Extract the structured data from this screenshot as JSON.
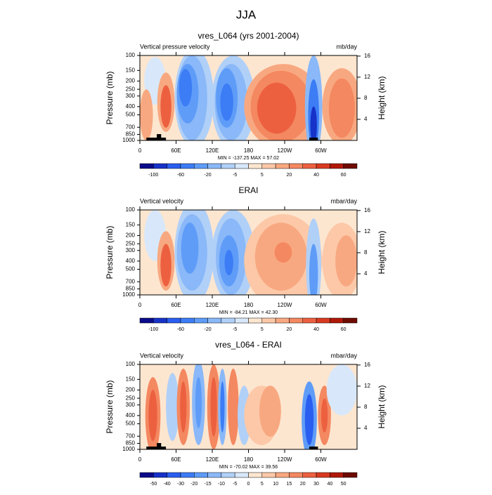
{
  "title": "JJA",
  "chart_data": [
    {
      "type": "contour",
      "title": "vres_L064 (yrs 2001-2004)",
      "left_label": "Vertical pressure velocity",
      "right_label": "mb/day",
      "y_label": "Pressure (mb)",
      "y2_label": "Height (km)",
      "log_y": true,
      "ylim": [
        1000,
        100
      ],
      "yticks": [
        100,
        150,
        200,
        250,
        300,
        400,
        500,
        700,
        850,
        1000
      ],
      "y2ticks": [
        4,
        8,
        12,
        16
      ],
      "xlim": [
        0,
        360
      ],
      "xticks": [
        0,
        {
          "value": 60,
          "label": "60E"
        },
        {
          "value": 120,
          "label": "120E"
        },
        180,
        {
          "value": 240,
          "label": "120W"
        },
        {
          "value": 300,
          "label": "60W"
        }
      ],
      "stats": "MIN = -137.25  MAX =  57.02",
      "colorbar": {
        "colors": [
          "#0a0a8a",
          "#1632c8",
          "#2a5ef0",
          "#3c7cf5",
          "#5e9cf8",
          "#8ab8f8",
          "#b0d0f8",
          "#d8e8fa",
          "#fde6d0",
          "#fcc8a8",
          "#f8a880",
          "#f48860",
          "#ec6040",
          "#d83a20",
          "#b01808",
          "#6e0a00"
        ],
        "labels": [
          -100,
          -60,
          -20,
          -5,
          5,
          20,
          40,
          60
        ]
      }
    },
    {
      "type": "contour",
      "title": "ERAI",
      "left_label": "Vertical velocity",
      "right_label": "mbar/day",
      "y_label": "Pressure (mb)",
      "y2_label": "Height (km)",
      "log_y": true,
      "ylim": [
        1000,
        100
      ],
      "yticks": [
        100,
        150,
        200,
        250,
        300,
        400,
        500,
        700,
        850,
        1000
      ],
      "y2ticks": [
        4,
        8,
        12,
        16
      ],
      "xlim": [
        0,
        360
      ],
      "xticks": [
        0,
        {
          "value": 60,
          "label": "60E"
        },
        {
          "value": 120,
          "label": "120E"
        },
        180,
        {
          "value": 240,
          "label": "120W"
        },
        {
          "value": 300,
          "label": "60W"
        }
      ],
      "stats": "MIN = -84.21  MAX =  42.30",
      "colorbar": {
        "colors": [
          "#0a0a8a",
          "#1632c8",
          "#2a5ef0",
          "#3c7cf5",
          "#5e9cf8",
          "#8ab8f8",
          "#b0d0f8",
          "#d8e8fa",
          "#fde6d0",
          "#fcc8a8",
          "#f8a880",
          "#f48860",
          "#ec6040",
          "#d83a20",
          "#b01808",
          "#6e0a00"
        ],
        "labels": [
          -100,
          -60,
          -20,
          -5,
          5,
          20,
          40,
          60
        ]
      }
    },
    {
      "type": "contour",
      "title": "vres_L064 - ERAI",
      "left_label": "Vertical velocity",
      "right_label": "mbar/day",
      "y_label": "Pressure (mb)",
      "y2_label": "Height (km)",
      "log_y": true,
      "ylim": [
        1000,
        100
      ],
      "yticks": [
        100,
        150,
        200,
        250,
        300,
        400,
        500,
        700,
        850,
        1000
      ],
      "y2ticks": [
        4,
        8,
        12,
        16
      ],
      "xlim": [
        0,
        360
      ],
      "xticks": [
        0,
        {
          "value": 60,
          "label": "60E"
        },
        {
          "value": 120,
          "label": "120E"
        },
        180,
        {
          "value": 240,
          "label": "120W"
        },
        {
          "value": 300,
          "label": "60W"
        }
      ],
      "stats": "MIN = -70.02  MAX =  39.56",
      "colorbar": {
        "colors": [
          "#0a0a8a",
          "#1632c8",
          "#2a5ef0",
          "#3c7cf5",
          "#5e9cf8",
          "#8ab8f8",
          "#b0d0f8",
          "#d8e8fa",
          "#fde6d0",
          "#fcc8a8",
          "#f8a880",
          "#f48860",
          "#ec6040",
          "#d83a20",
          "#b01808",
          "#6e0a00"
        ],
        "labels": [
          -50,
          -40,
          -30,
          -20,
          -15,
          -10,
          -5,
          0,
          5,
          10,
          15,
          20,
          30,
          40,
          50
        ]
      }
    }
  ]
}
